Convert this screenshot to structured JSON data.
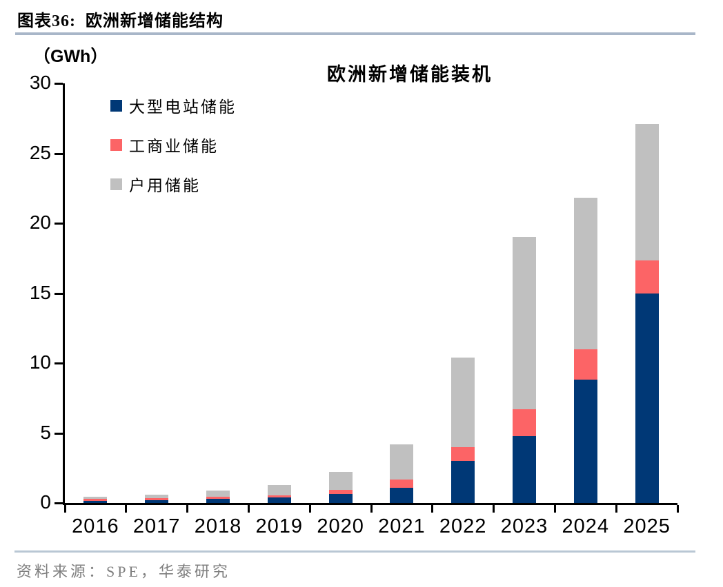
{
  "figure": {
    "label": "图表36:",
    "name": "欧洲新增储能结构"
  },
  "chart_data": {
    "type": "bar",
    "stacked": true,
    "title": "欧洲新增储能装机",
    "unit_label": "（GWh）",
    "categories": [
      "2016",
      "2017",
      "2018",
      "2019",
      "2020",
      "2021",
      "2022",
      "2023",
      "2024",
      "2025"
    ],
    "series": [
      {
        "name": "大型电站储能",
        "color": "#003876",
        "values": [
          0.15,
          0.2,
          0.3,
          0.4,
          0.65,
          1.1,
          3.0,
          4.8,
          8.8,
          15.0
        ]
      },
      {
        "name": "工商业储能",
        "color": "#FC6466",
        "values": [
          0.15,
          0.15,
          0.15,
          0.15,
          0.3,
          0.6,
          1.0,
          1.9,
          2.2,
          2.35
        ]
      },
      {
        "name": "户用储能",
        "color": "#C0C0C0",
        "values": [
          0.15,
          0.25,
          0.45,
          0.75,
          1.25,
          2.5,
          6.4,
          12.3,
          10.8,
          9.75
        ]
      }
    ],
    "totals": [
      0.45,
      0.6,
      0.9,
      1.3,
      2.2,
      4.2,
      10.4,
      19.0,
      21.8,
      27.1
    ],
    "xlabel": "",
    "ylabel": "GWh",
    "ylim": [
      0,
      30
    ],
    "yticks": [
      0,
      5,
      10,
      15,
      20,
      25,
      30
    ],
    "grid": false,
    "legend_position": "upper-left",
    "axis_color": "#000000"
  },
  "theme": {
    "header_rule_color": "#A8B6C8",
    "footer_rule_color": "#B9C7D4",
    "source_color": "#7f7f7f"
  },
  "footer": {
    "source_text": "资料来源：SPE，华泰研究"
  }
}
